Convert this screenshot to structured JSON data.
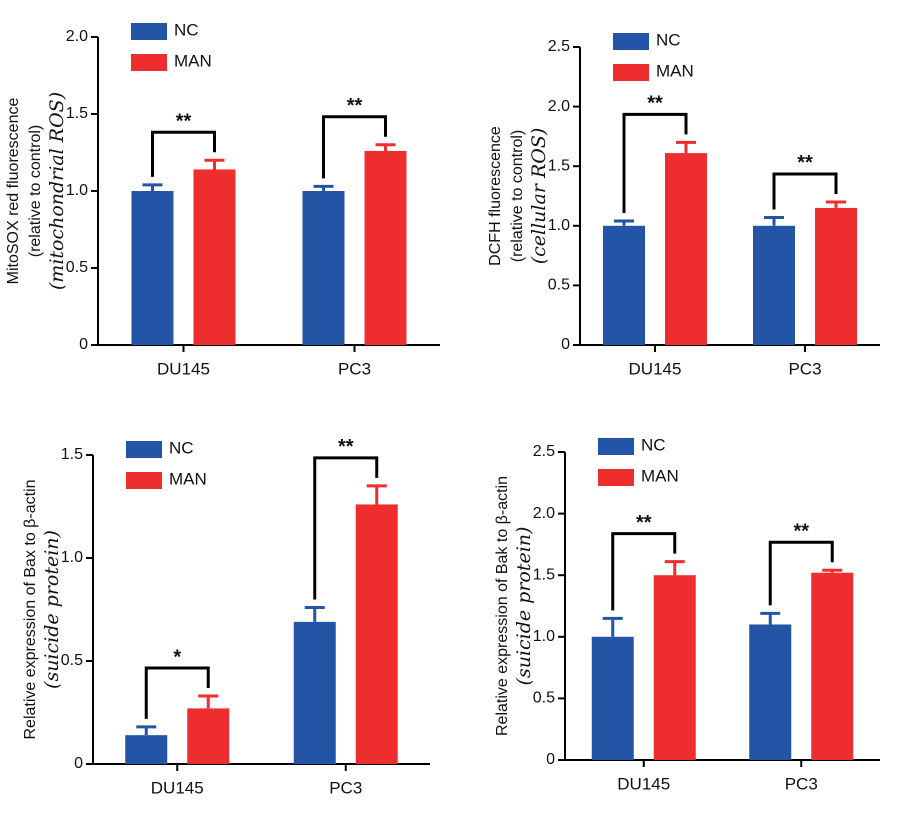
{
  "chart_data": [
    {
      "type": "bar",
      "ylabel": [
        "MitoSOX red fluorescence",
        "(relative to control)",
        "(mitochondrial ROS)"
      ],
      "categories": [
        "DU145",
        "PC3"
      ],
      "series": [
        {
          "name": "NC",
          "color": "#2454a6",
          "values": [
            1.0,
            1.0
          ],
          "errors": [
            0.04,
            0.03
          ]
        },
        {
          "name": "MAN",
          "color": "#ee2e2e",
          "values": [
            1.14,
            1.26
          ],
          "errors": [
            0.06,
            0.04
          ]
        }
      ],
      "significance": [
        "**",
        "**"
      ],
      "ylim": [
        0,
        2
      ],
      "yticks": [
        0,
        0.5,
        {
          "value": 1,
          "label": "1.0"
        },
        1.5,
        {
          "value": 2,
          "label": "2.0"
        }
      ]
    },
    {
      "type": "bar",
      "ylabel": [
        "DCFH fluorescence",
        "(relative to control)",
        "(cellular ROS)"
      ],
      "categories": [
        "DU145",
        "PC3"
      ],
      "series": [
        {
          "name": "NC",
          "color": "#2454a6",
          "values": [
            1.0,
            1.0
          ],
          "errors": [
            0.04,
            0.07
          ]
        },
        {
          "name": "MAN",
          "color": "#ee2e2e",
          "values": [
            1.61,
            1.15
          ],
          "errors": [
            0.09,
            0.05
          ]
        }
      ],
      "significance": [
        "**",
        "**"
      ],
      "ylim": [
        0,
        2.5
      ],
      "yticks": [
        0,
        0.5,
        {
          "value": 1,
          "label": "1.0"
        },
        1.5,
        {
          "value": 2,
          "label": "2.0"
        },
        2.5
      ]
    },
    {
      "type": "bar",
      "ylabel": [
        "Relative expression of Bax to β-actin",
        "(suicide protein)"
      ],
      "categories": [
        "DU145",
        "PC3"
      ],
      "series": [
        {
          "name": "NC",
          "color": "#2454a6",
          "values": [
            0.14,
            0.69
          ],
          "errors": [
            0.04,
            0.07
          ]
        },
        {
          "name": "MAN",
          "color": "#ee2e2e",
          "values": [
            0.27,
            1.26
          ],
          "errors": [
            0.06,
            0.09
          ]
        }
      ],
      "significance": [
        "*",
        "**"
      ],
      "ylim": [
        0,
        1.5
      ],
      "yticks": [
        0,
        0.5,
        {
          "value": 1,
          "label": "1.0"
        },
        1.5
      ]
    },
    {
      "type": "bar",
      "ylabel": [
        "Relative expression of Bak to β-actin",
        "(suicide protein)"
      ],
      "categories": [
        "DU145",
        "PC3"
      ],
      "series": [
        {
          "name": "NC",
          "color": "#2454a6",
          "values": [
            1.0,
            1.1
          ],
          "errors": [
            0.15,
            0.09
          ]
        },
        {
          "name": "MAN",
          "color": "#ee2e2e",
          "values": [
            1.5,
            1.52
          ],
          "errors": [
            0.11,
            0.02
          ]
        }
      ],
      "significance": [
        "**",
        "**"
      ],
      "ylim": [
        0,
        2.5
      ],
      "yticks": [
        0,
        0.5,
        {
          "value": 1,
          "label": "1.0"
        },
        1.5,
        {
          "value": 2,
          "label": "2.0"
        },
        2.5
      ]
    }
  ]
}
